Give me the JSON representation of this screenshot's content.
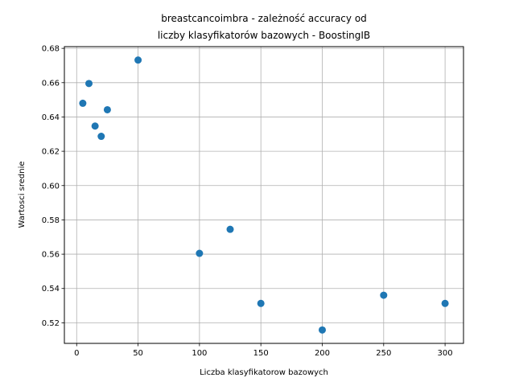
{
  "chart_data": {
    "type": "scatter",
    "title_lines": [
      "breastcancoimbra - zależność accuracy od",
      "liczby klasyfikatorów bazowych - BoostingIB"
    ],
    "xlabel": "Liczba klasyfikatorow bazowych",
    "ylabel": "Wartosci srednie",
    "xlim": [
      -10,
      315
    ],
    "ylim": [
      0.508,
      0.681
    ],
    "x_ticks": [
      0,
      50,
      100,
      150,
      200,
      250,
      300
    ],
    "y_ticks": [
      0.52,
      0.54,
      0.56,
      0.58,
      0.6,
      0.62,
      0.64,
      0.66,
      0.68
    ],
    "x_tick_labels": [
      "0",
      "50",
      "100",
      "150",
      "200",
      "250",
      "300"
    ],
    "y_tick_labels": [
      "0.52",
      "0.54",
      "0.56",
      "0.58",
      "0.60",
      "0.62",
      "0.64",
      "0.66",
      "0.68"
    ],
    "grid": true,
    "marker_color": "#1f77b4",
    "points": [
      {
        "x": 5,
        "y": 0.648
      },
      {
        "x": 10,
        "y": 0.6595
      },
      {
        "x": 15,
        "y": 0.6347
      },
      {
        "x": 20,
        "y": 0.6287
      },
      {
        "x": 25,
        "y": 0.6442
      },
      {
        "x": 50,
        "y": 0.6732
      },
      {
        "x": 100,
        "y": 0.5605
      },
      {
        "x": 125,
        "y": 0.5745
      },
      {
        "x": 150,
        "y": 0.5313
      },
      {
        "x": 200,
        "y": 0.5158
      },
      {
        "x": 250,
        "y": 0.5361
      },
      {
        "x": 300,
        "y": 0.5313
      }
    ]
  }
}
